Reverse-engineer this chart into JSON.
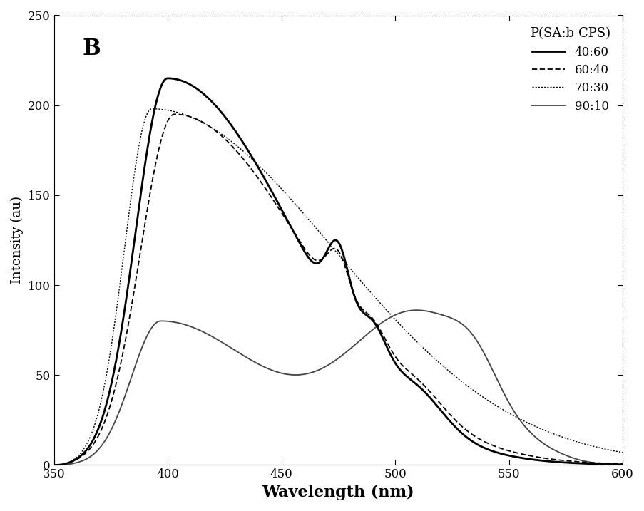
{
  "title": "B",
  "xlabel": "Wavelength (nm)",
  "ylabel": "Intensity (au)",
  "xlim": [
    350,
    600
  ],
  "ylim": [
    0,
    250
  ],
  "yticks": [
    0,
    50,
    100,
    150,
    200,
    250
  ],
  "xticks": [
    350,
    400,
    450,
    500,
    550,
    600
  ],
  "legend_title": "P(SA:b-CPS)",
  "background_color": "#ffffff"
}
